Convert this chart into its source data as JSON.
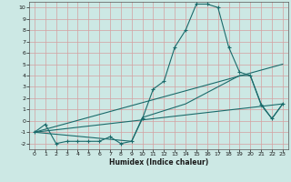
{
  "xlabel": "Humidex (Indice chaleur)",
  "xlim": [
    -0.5,
    23.5
  ],
  "ylim": [
    -2.5,
    10.5
  ],
  "xticks": [
    0,
    1,
    2,
    3,
    4,
    5,
    6,
    7,
    8,
    9,
    10,
    11,
    12,
    13,
    14,
    15,
    16,
    17,
    18,
    19,
    20,
    21,
    22,
    23
  ],
  "yticks": [
    -2,
    -1,
    0,
    1,
    2,
    3,
    4,
    5,
    6,
    7,
    8,
    9,
    10
  ],
  "bg_color": "#cce8e4",
  "grid_color": "#d4a0a0",
  "line_color": "#1a6b6b",
  "series1_x": [
    0,
    1,
    2,
    3,
    4,
    5,
    6,
    7,
    8,
    9,
    10,
    11,
    12,
    13,
    14,
    15,
    16,
    17,
    18,
    19,
    20,
    21,
    22,
    23
  ],
  "series1_y": [
    -1,
    -0.3,
    -2,
    -1.8,
    -1.8,
    -1.8,
    -1.8,
    -1.4,
    -2,
    -1.8,
    0.2,
    2.8,
    3.5,
    6.5,
    8.0,
    10.3,
    10.3,
    10.0,
    6.5,
    4.3,
    4.0,
    1.4,
    0.2,
    1.5
  ],
  "series2_x": [
    0,
    23
  ],
  "series2_y": [
    -1.0,
    1.5
  ],
  "series3_x": [
    0,
    23
  ],
  "series3_y": [
    -1.0,
    5.0
  ],
  "series4_x": [
    0,
    9,
    10,
    14,
    19,
    20,
    21,
    22,
    23
  ],
  "series4_y": [
    -1.0,
    -1.8,
    0.3,
    1.5,
    4.0,
    4.0,
    1.5,
    0.2,
    1.5
  ]
}
